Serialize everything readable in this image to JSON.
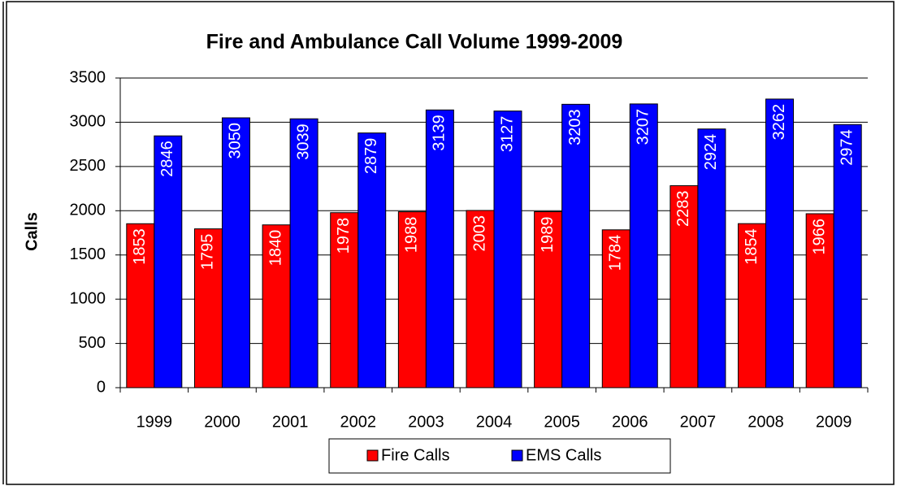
{
  "chart_data": {
    "type": "bar",
    "title": "Fire and Ambulance Call Volume 1999-2009",
    "y_label": "Calls",
    "categories": [
      "1999",
      "2000",
      "2001",
      "2002",
      "2003",
      "2004",
      "2005",
      "2006",
      "2007",
      "2008",
      "2009"
    ],
    "series": [
      {
        "name": "Fire Calls",
        "color": "#ff0000",
        "values": [
          1853,
          1795,
          1840,
          1978,
          1988,
          2003,
          1989,
          1784,
          2283,
          1854,
          1966
        ]
      },
      {
        "name": "EMS Calls",
        "color": "#0000ff",
        "values": [
          2846,
          3050,
          3039,
          2879,
          3139,
          3127,
          3203,
          3207,
          2924,
          3262,
          2974
        ]
      }
    ],
    "ylim": [
      0,
      3500
    ],
    "yticks": [
      0,
      500,
      1000,
      1500,
      2000,
      2500,
      3000,
      3500
    ],
    "grid": true,
    "legend": "bottom"
  }
}
